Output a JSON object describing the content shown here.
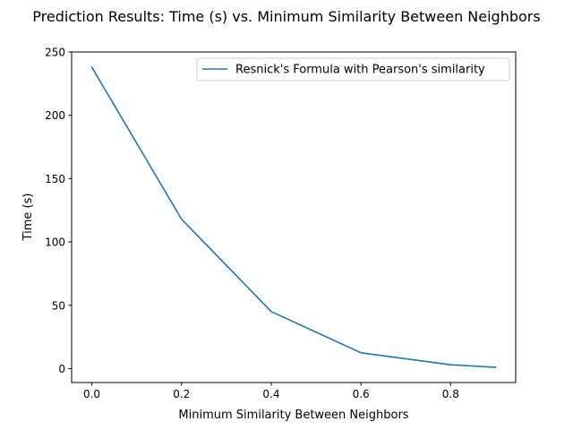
{
  "chart_data": {
    "type": "line",
    "title": "Prediction Results: Time (s) vs. Minimum Similarity Between Neighbors",
    "xlabel": "Minimum Similarity Between Neighbors",
    "ylabel": "Time (s)",
    "xlim": [
      -0.045,
      0.945
    ],
    "ylim": [
      -11,
      250
    ],
    "xticks": [
      0.0,
      0.2,
      0.4,
      0.6,
      0.8
    ],
    "xtick_labels": [
      "0.0",
      "0.2",
      "0.4",
      "0.6",
      "0.8"
    ],
    "yticks": [
      0,
      50,
      100,
      150,
      200,
      250
    ],
    "ytick_labels": [
      "0",
      "50",
      "100",
      "150",
      "200",
      "250"
    ],
    "grid": false,
    "legend_position": "top-right",
    "series": [
      {
        "name": "Resnick's Formula with Pearson's similarity",
        "color": "#1f77b4",
        "x": [
          0.0,
          0.2,
          0.4,
          0.6,
          0.8,
          0.9
        ],
        "y": [
          238,
          118,
          45,
          12.5,
          3,
          1
        ]
      }
    ]
  }
}
